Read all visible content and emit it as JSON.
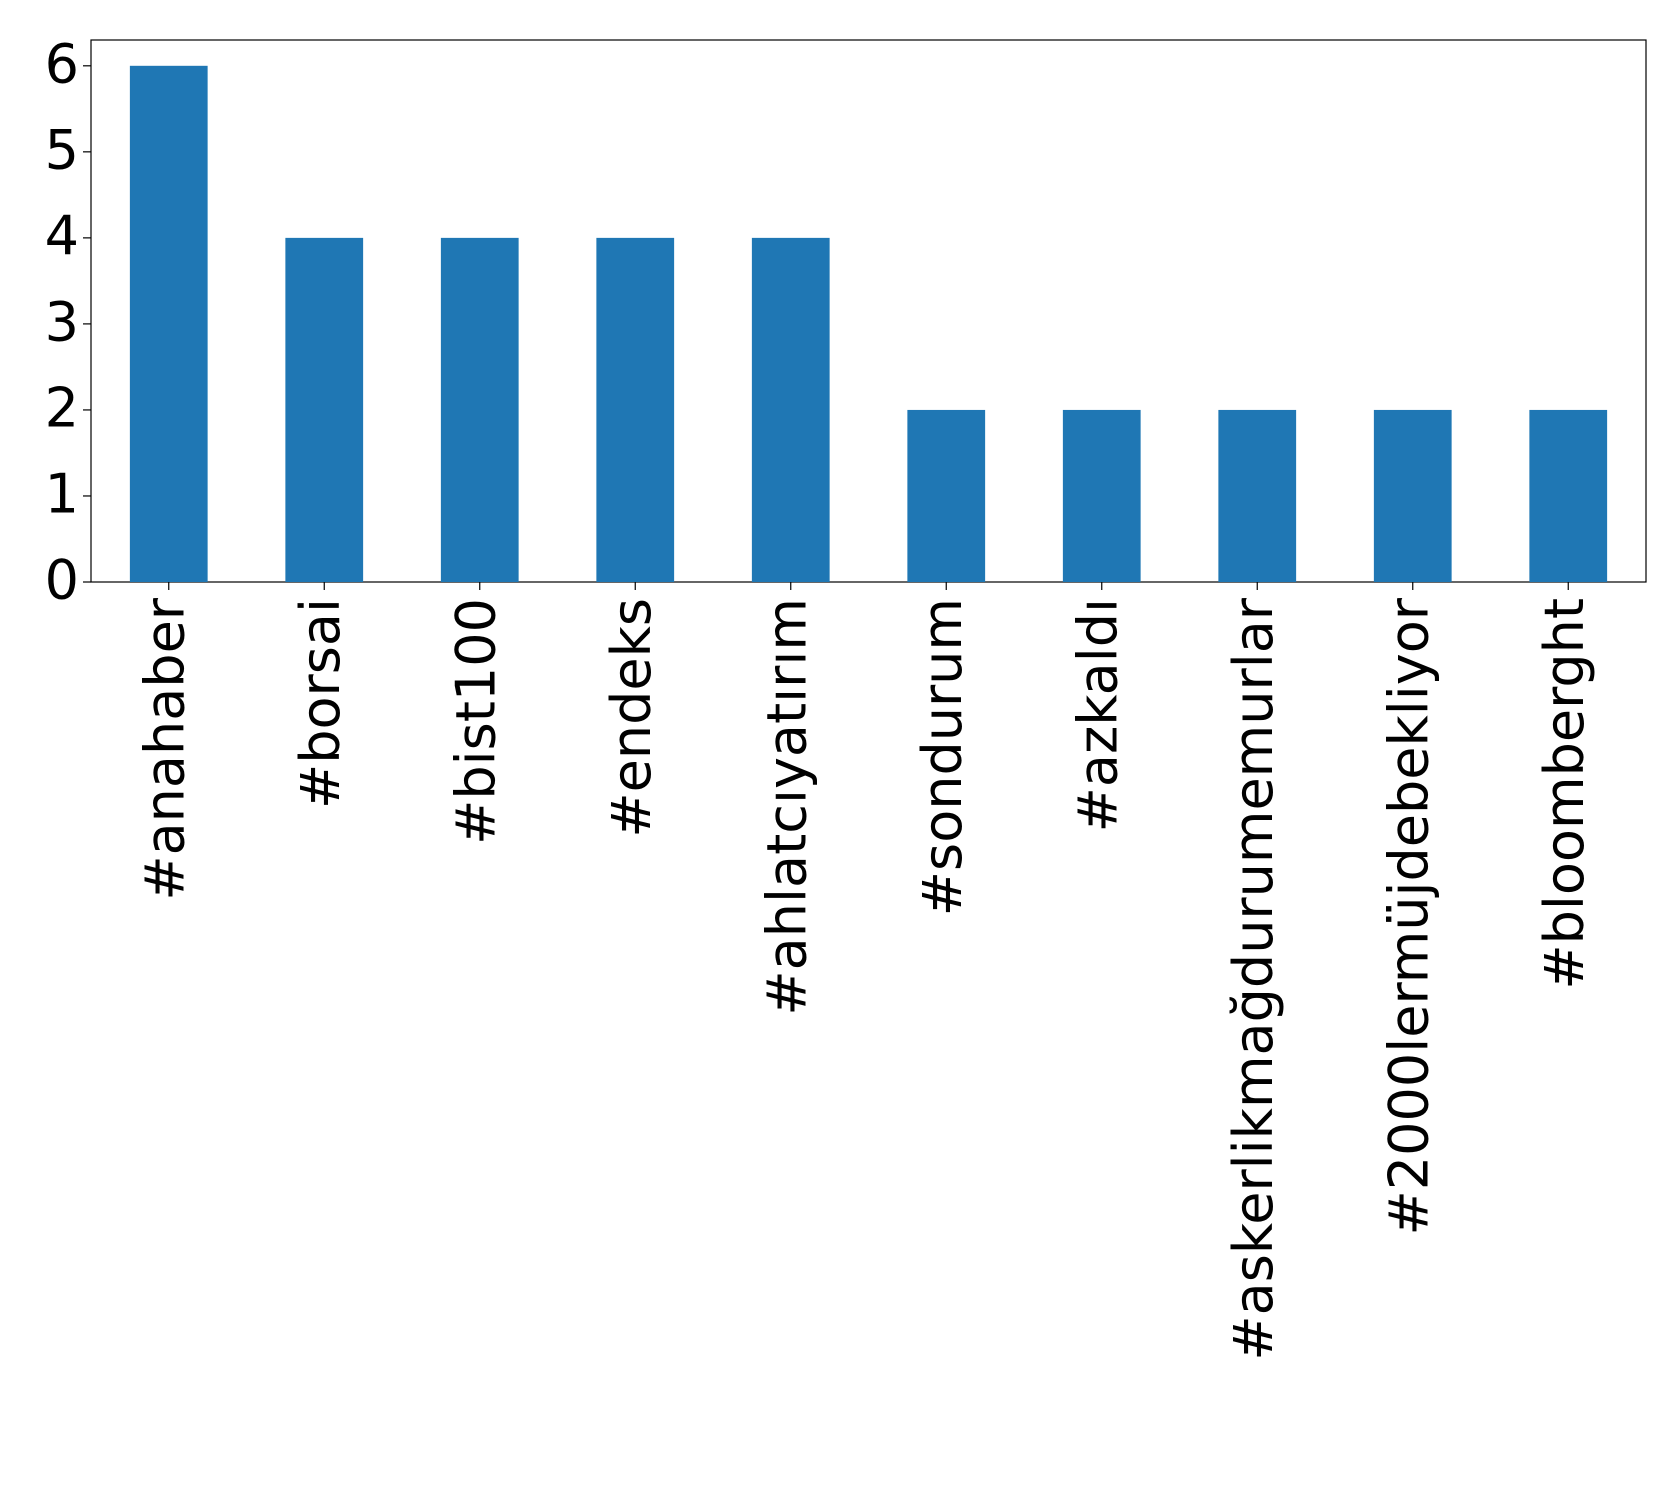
{
  "chart_data": {
    "type": "bar",
    "categories": [
      "#anahaber",
      "#borsai",
      "#bist100",
      "#endeks",
      "#ahlatcıyatırım",
      "#sondurum",
      "#azkaldı",
      "#askerlikmağdurumemurlar",
      "#2000lermüjdebekliyor",
      "#bloomberght"
    ],
    "values": [
      6,
      4,
      4,
      4,
      4,
      2,
      2,
      2,
      2,
      2
    ],
    "color": "#1f77b4",
    "ylim": [
      0,
      6.3
    ],
    "yticks": [
      0,
      1,
      2,
      3,
      4,
      5,
      6
    ],
    "grid": false
  }
}
